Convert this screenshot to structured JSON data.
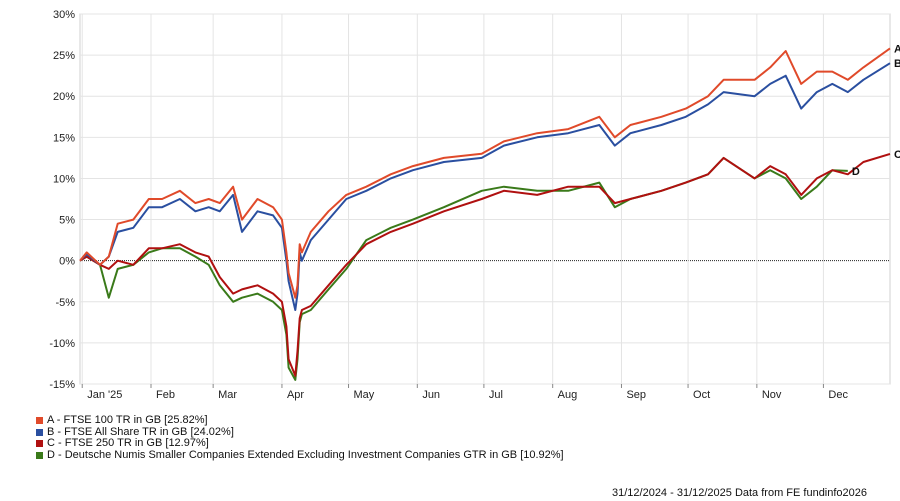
{
  "chart_data": {
    "type": "line",
    "y_ticks": [
      "30%",
      "25%",
      "20%",
      "15%",
      "10%",
      "5%",
      "0%",
      "-5%",
      "-10%",
      "-15%"
    ],
    "ylim": [
      -15,
      30
    ],
    "xlim": [
      "2024-12-31",
      "2025-12-31"
    ],
    "x_ticks": [
      {
        "label": "Jan '25",
        "date": "2025-01-01"
      },
      {
        "label": "Feb",
        "date": "2025-02-01"
      },
      {
        "label": "Mar",
        "date": "2025-03-01"
      },
      {
        "label": "Apr",
        "date": "2025-04-01"
      },
      {
        "label": "May",
        "date": "2025-05-01"
      },
      {
        "label": "Jun",
        "date": "2025-06-01"
      },
      {
        "label": "Jul",
        "date": "2025-07-01"
      },
      {
        "label": "Aug",
        "date": "2025-08-01"
      },
      {
        "label": "Sep",
        "date": "2025-09-01"
      },
      {
        "label": "Oct",
        "date": "2025-10-01"
      },
      {
        "label": "Nov",
        "date": "2025-11-01"
      },
      {
        "label": "Dec",
        "date": "2025-12-01"
      }
    ],
    "zero_line": true,
    "series": [
      {
        "key": "A",
        "name": "A - FTSE 100 TR in GB [25.82%]",
        "color": "#e04a2a",
        "x": [
          "2024-12-31",
          "2025-01-03",
          "2025-01-09",
          "2025-01-13",
          "2025-01-17",
          "2025-01-24",
          "2025-01-31",
          "2025-02-06",
          "2025-02-14",
          "2025-02-21",
          "2025-02-27",
          "2025-03-04",
          "2025-03-10",
          "2025-03-14",
          "2025-03-21",
          "2025-03-28",
          "2025-04-01",
          "2025-04-03",
          "2025-04-04",
          "2025-04-07",
          "2025-04-08",
          "2025-04-09",
          "2025-04-10",
          "2025-04-14",
          "2025-04-22",
          "2025-04-30",
          "2025-05-09",
          "2025-05-20",
          "2025-05-30",
          "2025-06-13",
          "2025-06-30",
          "2025-07-10",
          "2025-07-25",
          "2025-08-08",
          "2025-08-22",
          "2025-08-29",
          "2025-09-05",
          "2025-09-19",
          "2025-09-30",
          "2025-10-10",
          "2025-10-17",
          "2025-10-31",
          "2025-11-07",
          "2025-11-14",
          "2025-11-21",
          "2025-11-28",
          "2025-12-05",
          "2025-12-12",
          "2025-12-19",
          "2025-12-31"
        ],
        "y": [
          0,
          1,
          -0.5,
          0.5,
          4.5,
          5,
          7.5,
          7.5,
          8.5,
          7,
          7.5,
          7,
          9,
          5,
          7.5,
          6.5,
          5,
          1,
          -1.5,
          -4.5,
          -3,
          2,
          1,
          3.5,
          6,
          8,
          9,
          10.5,
          11.5,
          12.5,
          13,
          14.5,
          15.5,
          16,
          17.5,
          15,
          16.5,
          17.5,
          18.5,
          20,
          22,
          22,
          23.5,
          25.5,
          21.5,
          23,
          23,
          22,
          23.5,
          25.82
        ]
      },
      {
        "key": "B",
        "name": "B - FTSE All Share TR in GB [24.02%]",
        "color": "#2a4fa0",
        "x": [
          "2024-12-31",
          "2025-01-03",
          "2025-01-09",
          "2025-01-13",
          "2025-01-17",
          "2025-01-24",
          "2025-01-31",
          "2025-02-06",
          "2025-02-14",
          "2025-02-21",
          "2025-02-27",
          "2025-03-04",
          "2025-03-10",
          "2025-03-14",
          "2025-03-21",
          "2025-03-28",
          "2025-04-01",
          "2025-04-03",
          "2025-04-04",
          "2025-04-07",
          "2025-04-08",
          "2025-04-09",
          "2025-04-10",
          "2025-04-14",
          "2025-04-22",
          "2025-04-30",
          "2025-05-09",
          "2025-05-20",
          "2025-05-30",
          "2025-06-13",
          "2025-06-30",
          "2025-07-10",
          "2025-07-25",
          "2025-08-08",
          "2025-08-22",
          "2025-08-29",
          "2025-09-05",
          "2025-09-19",
          "2025-09-30",
          "2025-10-10",
          "2025-10-17",
          "2025-10-31",
          "2025-11-07",
          "2025-11-14",
          "2025-11-21",
          "2025-11-28",
          "2025-12-05",
          "2025-12-12",
          "2025-12-19",
          "2025-12-31"
        ],
        "y": [
          0,
          0.8,
          -0.5,
          0.5,
          3.5,
          4,
          6.5,
          6.5,
          7.5,
          6,
          6.5,
          6,
          8,
          3.5,
          6,
          5.5,
          4,
          0,
          -2.5,
          -6,
          -4,
          1,
          0,
          2.5,
          5,
          7.5,
          8.5,
          10,
          11,
          12,
          12.5,
          14,
          15,
          15.5,
          16.5,
          14,
          15.5,
          16.5,
          17.5,
          19,
          20.5,
          20,
          21.5,
          22.5,
          18.5,
          20.5,
          21.5,
          20.5,
          22,
          24.02
        ]
      },
      {
        "key": "C",
        "name": "C - FTSE 250 TR in GB [12.97%]",
        "color": "#b01010",
        "x": [
          "2024-12-31",
          "2025-01-03",
          "2025-01-09",
          "2025-01-13",
          "2025-01-17",
          "2025-01-24",
          "2025-01-31",
          "2025-02-06",
          "2025-02-14",
          "2025-02-21",
          "2025-02-27",
          "2025-03-04",
          "2025-03-10",
          "2025-03-14",
          "2025-03-21",
          "2025-03-28",
          "2025-04-01",
          "2025-04-03",
          "2025-04-04",
          "2025-04-07",
          "2025-04-08",
          "2025-04-09",
          "2025-04-10",
          "2025-04-14",
          "2025-04-22",
          "2025-04-30",
          "2025-05-09",
          "2025-05-20",
          "2025-05-30",
          "2025-06-13",
          "2025-06-30",
          "2025-07-10",
          "2025-07-25",
          "2025-08-08",
          "2025-08-22",
          "2025-08-29",
          "2025-09-05",
          "2025-09-19",
          "2025-09-30",
          "2025-10-10",
          "2025-10-17",
          "2025-10-31",
          "2025-11-07",
          "2025-11-14",
          "2025-11-21",
          "2025-11-28",
          "2025-12-05",
          "2025-12-12",
          "2025-12-19",
          "2025-12-31"
        ],
        "y": [
          0,
          0.5,
          -0.5,
          -1,
          0,
          -0.5,
          1.5,
          1.5,
          2,
          1,
          0.5,
          -2,
          -4,
          -3.5,
          -3,
          -4,
          -5,
          -8,
          -12,
          -14,
          -11,
          -7,
          -6,
          -5.5,
          -3,
          -0.5,
          2,
          3.5,
          4.5,
          6,
          7.5,
          8.5,
          8,
          9,
          9,
          7,
          7.5,
          8.5,
          9.5,
          10.5,
          12.5,
          10,
          11.5,
          10.5,
          8,
          10,
          11,
          10.5,
          12,
          12.97
        ]
      },
      {
        "key": "D",
        "name": "D - Deutsche Numis Smaller Companies Extended Excluding Investment Companies GTR in GB [10.92%]",
        "color": "#3a7a1a",
        "x": [
          "2024-12-31",
          "2025-01-03",
          "2025-01-09",
          "2025-01-13",
          "2025-01-17",
          "2025-01-24",
          "2025-01-31",
          "2025-02-06",
          "2025-02-14",
          "2025-02-21",
          "2025-02-27",
          "2025-03-04",
          "2025-03-10",
          "2025-03-14",
          "2025-03-21",
          "2025-03-28",
          "2025-04-01",
          "2025-04-03",
          "2025-04-04",
          "2025-04-07",
          "2025-04-08",
          "2025-04-09",
          "2025-04-10",
          "2025-04-14",
          "2025-04-22",
          "2025-04-30",
          "2025-05-09",
          "2025-05-20",
          "2025-05-30",
          "2025-06-13",
          "2025-06-30",
          "2025-07-10",
          "2025-07-25",
          "2025-08-08",
          "2025-08-22",
          "2025-08-29",
          "2025-09-05",
          "2025-09-19",
          "2025-09-30",
          "2025-10-10",
          "2025-10-17",
          "2025-10-31",
          "2025-11-07",
          "2025-11-14",
          "2025-11-21",
          "2025-11-28",
          "2025-12-05",
          "2025-12-12"
        ],
        "y": [
          0,
          0.5,
          -0.5,
          -4.5,
          -1,
          -0.5,
          1,
          1.5,
          1.5,
          0.5,
          -0.5,
          -3,
          -5,
          -4.5,
          -4,
          -5,
          -6,
          -9,
          -13,
          -14.5,
          -12,
          -7.5,
          -6.5,
          -6,
          -3.5,
          -1,
          2.5,
          4,
          5,
          6.5,
          8.5,
          9,
          8.5,
          8.5,
          9.5,
          6.5,
          7.5,
          8.5,
          9.5,
          10.5,
          12.5,
          10,
          11,
          10,
          7.5,
          9,
          11,
          10.92
        ]
      }
    ],
    "end_labels": [
      "A",
      "B",
      "C",
      "D"
    ],
    "footer": "31/12/2024 - 31/12/2025 Data from FE fundinfo2026"
  }
}
